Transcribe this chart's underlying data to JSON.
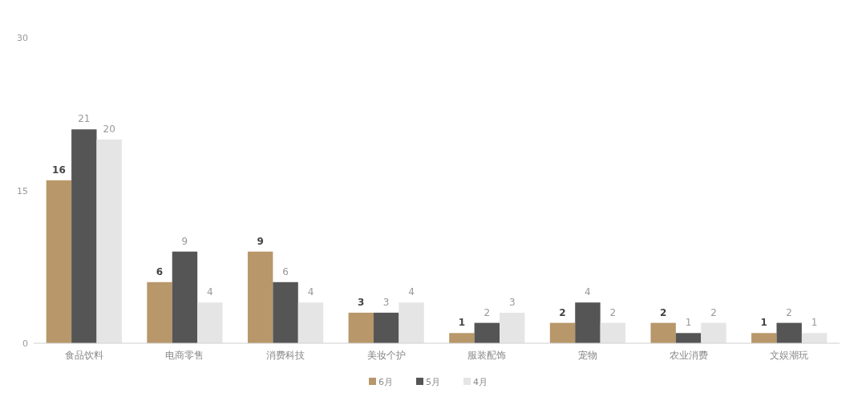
{
  "chart_data": {
    "type": "bar",
    "categories": [
      "食品饮料",
      "电商零售",
      "消费科技",
      "美妆个护",
      "服装配饰",
      "宠物",
      "农业消费",
      "文娱潮玩"
    ],
    "series": [
      {
        "name": "6月",
        "color": "#b8976a",
        "values": [
          16,
          6,
          9,
          3,
          1,
          2,
          2,
          1
        ]
      },
      {
        "name": "5月",
        "color": "#555555",
        "values": [
          21,
          9,
          6,
          3,
          2,
          4,
          1,
          2
        ]
      },
      {
        "name": "4月",
        "color": "#e5e5e5",
        "values": [
          20,
          4,
          4,
          4,
          3,
          2,
          2,
          1
        ]
      }
    ],
    "ylim": [
      0,
      30
    ],
    "yticks": [
      0,
      15,
      30
    ],
    "data_labels": true,
    "legend": "bottom"
  }
}
